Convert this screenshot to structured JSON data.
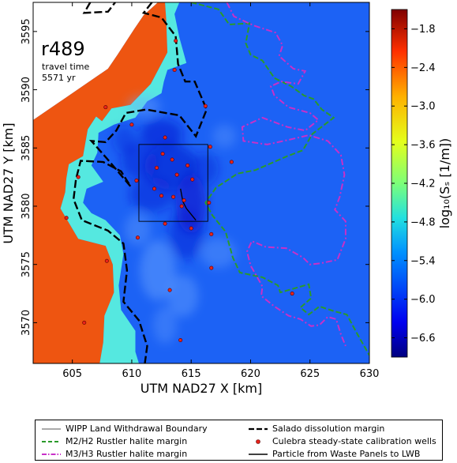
{
  "chart_data": {
    "type": "heatmap",
    "xlabel": "UTM NAD27 X [km]",
    "ylabel": "UTM NAD27 Y [km]",
    "xlim": [
      601.7,
      630.0
    ],
    "ylim": [
      3566.5,
      3597.5
    ],
    "xticks": [
      "605",
      "610",
      "615",
      "620",
      "625",
      "630"
    ],
    "yticks": [
      "3570",
      "3575",
      "3580",
      "3585",
      "3590",
      "3595"
    ],
    "annotation": {
      "title": "r489",
      "line1": "travel time",
      "line2": "5571 yr"
    },
    "colorbar": {
      "label": "log₁₀(Sₛ [1/m])",
      "range": [
        -6.9,
        -1.5
      ],
      "ticks": [
        "−1.8",
        "−2.4",
        "−3.0",
        "−3.6",
        "−4.2",
        "−4.8",
        "−5.4",
        "−6.0",
        "−6.6"
      ],
      "tick_values": [
        -1.8,
        -2.4,
        -3.0,
        -3.6,
        -4.2,
        -4.8,
        -5.4,
        -6.0,
        -6.6
      ]
    },
    "colors": {
      "high": "#ee5511",
      "mid": "#55e8e0",
      "low": "#1c62f5",
      "deep": "#0a1ad0",
      "no_data": "#ffffff"
    },
    "wipp_boundary": {
      "x": [
        610.6,
        616.4
      ],
      "y": [
        3578.7,
        3585.3
      ]
    },
    "wells": [
      {
        "x": 613.7,
        "y": 3594.2
      },
      {
        "x": 613.6,
        "y": 3591.7
      },
      {
        "x": 607.8,
        "y": 3588.5
      },
      {
        "x": 616.2,
        "y": 3588.6
      },
      {
        "x": 610.0,
        "y": 3587.0
      },
      {
        "x": 612.8,
        "y": 3585.9
      },
      {
        "x": 616.6,
        "y": 3585.1
      },
      {
        "x": 618.4,
        "y": 3583.8
      },
      {
        "x": 605.5,
        "y": 3582.5
      },
      {
        "x": 610.4,
        "y": 3582.2
      },
      {
        "x": 612.6,
        "y": 3584.5
      },
      {
        "x": 613.4,
        "y": 3584.0
      },
      {
        "x": 614.7,
        "y": 3583.5
      },
      {
        "x": 612.1,
        "y": 3583.3
      },
      {
        "x": 613.8,
        "y": 3582.7
      },
      {
        "x": 615.1,
        "y": 3582.3
      },
      {
        "x": 611.9,
        "y": 3581.5
      },
      {
        "x": 612.5,
        "y": 3580.9
      },
      {
        "x": 613.5,
        "y": 3580.8
      },
      {
        "x": 614.4,
        "y": 3580.5
      },
      {
        "x": 614.2,
        "y": 3580.0
      },
      {
        "x": 616.5,
        "y": 3580.3
      },
      {
        "x": 604.5,
        "y": 3579.0
      },
      {
        "x": 612.8,
        "y": 3578.5
      },
      {
        "x": 615.0,
        "y": 3578.1
      },
      {
        "x": 610.5,
        "y": 3577.3
      },
      {
        "x": 616.7,
        "y": 3577.6
      },
      {
        "x": 607.9,
        "y": 3575.3
      },
      {
        "x": 616.7,
        "y": 3574.7
      },
      {
        "x": 613.2,
        "y": 3572.8
      },
      {
        "x": 623.5,
        "y": 3572.5
      },
      {
        "x": 606.0,
        "y": 3570.0
      },
      {
        "x": 614.1,
        "y": 3568.5
      }
    ],
    "salado_margin": [
      [
        606.5,
        3597.5
      ],
      [
        606.0,
        3596.6
      ],
      [
        608.0,
        3596.7
      ],
      [
        608.6,
        3597.5
      ]
    ],
    "salado_margin_main": [
      [
        611.7,
        3597.5
      ],
      [
        611.0,
        3596.6
      ],
      [
        612.5,
        3596.2
      ],
      [
        613.7,
        3594.6
      ],
      [
        613.9,
        3592.2
      ],
      [
        614.5,
        3590.7
      ],
      [
        615.3,
        3590.7
      ],
      [
        616.3,
        3588.3
      ],
      [
        615.4,
        3586.0
      ],
      [
        614.0,
        3587.8
      ],
      [
        611.2,
        3588.3
      ],
      [
        609.5,
        3588.0
      ],
      [
        608.7,
        3586.5
      ],
      [
        607.8,
        3585.5
      ],
      [
        606.6,
        3585.6
      ],
      [
        607.9,
        3584.1
      ],
      [
        608.9,
        3582.9
      ],
      [
        609.9,
        3581.7
      ],
      [
        609.1,
        3583.0
      ],
      [
        607.6,
        3583.8
      ],
      [
        605.7,
        3583.9
      ],
      [
        605.3,
        3582.3
      ],
      [
        605.1,
        3580.6
      ],
      [
        605.8,
        3578.8
      ],
      [
        608.0,
        3577.9
      ],
      [
        609.3,
        3576.8
      ],
      [
        609.6,
        3574.5
      ],
      [
        609.3,
        3571.8
      ],
      [
        610.6,
        3570.2
      ],
      [
        611.3,
        3568.0
      ],
      [
        611.1,
        3566.5
      ]
    ],
    "m2h2_margin": [
      [
        615.0,
        3597.5
      ],
      [
        617.3,
        3596.9
      ],
      [
        618.2,
        3595.6
      ],
      [
        619.9,
        3595.7
      ],
      [
        619.6,
        3594.0
      ],
      [
        620.0,
        3593.0
      ],
      [
        621.0,
        3592.5
      ],
      [
        622.0,
        3591.0
      ],
      [
        623.4,
        3590.3
      ],
      [
        624.5,
        3589.5
      ],
      [
        625.3,
        3589.2
      ],
      [
        626.0,
        3588.3
      ],
      [
        627.0,
        3587.6
      ],
      [
        625.2,
        3586.2
      ],
      [
        624.4,
        3584.8
      ],
      [
        623.1,
        3584.3
      ],
      [
        620.4,
        3583.1
      ],
      [
        618.9,
        3582.8
      ],
      [
        617.1,
        3581.6
      ],
      [
        616.2,
        3580.3
      ],
      [
        616.8,
        3579.2
      ],
      [
        617.9,
        3577.8
      ],
      [
        618.5,
        3575.6
      ],
      [
        619.1,
        3574.3
      ],
      [
        621.0,
        3573.9
      ],
      [
        622.3,
        3573.2
      ],
      [
        622.5,
        3572.6
      ],
      [
        624.9,
        3573.3
      ],
      [
        625.1,
        3572.1
      ],
      [
        624.2,
        3571.3
      ],
      [
        624.9,
        3570.7
      ],
      [
        625.8,
        3571.4
      ],
      [
        627.0,
        3571.0
      ],
      [
        628.1,
        3570.7
      ],
      [
        629.0,
        3569.0
      ],
      [
        630.0,
        3567.2
      ]
    ],
    "m3h3_margin": [
      [
        618.0,
        3597.5
      ],
      [
        618.6,
        3596.3
      ],
      [
        620.3,
        3595.5
      ],
      [
        622.1,
        3594.9
      ],
      [
        622.7,
        3593.8
      ],
      [
        622.4,
        3592.9
      ],
      [
        623.6,
        3591.8
      ],
      [
        624.6,
        3591.6
      ],
      [
        624.0,
        3590.5
      ],
      [
        622.6,
        3590.7
      ],
      [
        621.7,
        3590.3
      ],
      [
        622.0,
        3589.5
      ],
      [
        623.2,
        3588.5
      ],
      [
        625.0,
        3588.0
      ],
      [
        625.7,
        3587.4
      ],
      [
        624.6,
        3586.5
      ],
      [
        623.1,
        3586.8
      ],
      [
        621.0,
        3587.6
      ],
      [
        619.3,
        3586.8
      ],
      [
        619.4,
        3585.6
      ],
      [
        621.4,
        3585.3
      ],
      [
        623.2,
        3585.7
      ],
      [
        624.9,
        3586.1
      ],
      [
        626.5,
        3585.6
      ],
      [
        627.6,
        3584.4
      ],
      [
        627.9,
        3582.7
      ],
      [
        627.5,
        3580.8
      ],
      [
        627.1,
        3579.7
      ],
      [
        628.0,
        3578.7
      ],
      [
        628.0,
        3577.2
      ],
      [
        627.3,
        3575.4
      ],
      [
        625.9,
        3575.1
      ],
      [
        625.0,
        3575.0
      ],
      [
        624.4,
        3575.6
      ],
      [
        623.0,
        3576.4
      ],
      [
        621.3,
        3576.5
      ],
      [
        620.1,
        3577.0
      ],
      [
        619.7,
        3576.1
      ],
      [
        620.0,
        3574.9
      ],
      [
        620.4,
        3574.2
      ],
      [
        621.0,
        3573.1
      ],
      [
        620.9,
        3572.3
      ],
      [
        622.0,
        3571.4
      ],
      [
        623.2,
        3570.6
      ],
      [
        624.2,
        3570.3
      ],
      [
        625.1,
        3569.7
      ],
      [
        625.8,
        3569.8
      ],
      [
        626.5,
        3570.5
      ],
      [
        627.2,
        3570.3
      ],
      [
        627.6,
        3569.0
      ],
      [
        628.0,
        3568.0
      ]
    ],
    "particle_path": [
      [
        614.1,
        3581.5
      ],
      [
        614.3,
        3580.4
      ],
      [
        614.6,
        3579.8
      ],
      [
        615.0,
        3579.3
      ],
      [
        615.4,
        3578.8
      ]
    ],
    "no_data_region": [
      [
        601.7,
        3597.5
      ],
      [
        612.2,
        3597.5
      ],
      [
        611.0,
        3596.4
      ],
      [
        610.2,
        3595.2
      ],
      [
        608.8,
        3593.0
      ],
      [
        608.0,
        3591.8
      ],
      [
        604.0,
        3589.0
      ],
      [
        601.7,
        3587.4
      ]
    ],
    "high_region": [
      [
        601.7,
        3587.4
      ],
      [
        604.0,
        3589.0
      ],
      [
        608.0,
        3591.8
      ],
      [
        608.8,
        3593.0
      ],
      [
        610.2,
        3595.2
      ],
      [
        611.0,
        3596.4
      ],
      [
        612.2,
        3597.5
      ],
      [
        612.8,
        3597.5
      ],
      [
        612.9,
        3596.0
      ],
      [
        613.0,
        3593.2
      ],
      [
        611.6,
        3590.5
      ],
      [
        609.9,
        3588.7
      ],
      [
        608.3,
        3588.4
      ],
      [
        607.5,
        3587.3
      ],
      [
        607.0,
        3587.7
      ],
      [
        606.3,
        3586.6
      ],
      [
        605.9,
        3584.3
      ],
      [
        604.7,
        3583.6
      ],
      [
        604.5,
        3582.4
      ],
      [
        604.4,
        3581.2
      ],
      [
        604.0,
        3579.8
      ],
      [
        605.5,
        3577.2
      ],
      [
        607.8,
        3576.6
      ],
      [
        608.4,
        3575.0
      ],
      [
        608.5,
        3572.6
      ],
      [
        607.7,
        3570.6
      ],
      [
        607.6,
        3568.3
      ],
      [
        607.3,
        3566.5
      ],
      [
        601.7,
        3566.5
      ]
    ],
    "mid_region": [
      [
        612.2,
        3597.5
      ],
      [
        614.0,
        3597.5
      ],
      [
        613.6,
        3596.5
      ],
      [
        614.0,
        3594.5
      ],
      [
        614.6,
        3592.3
      ],
      [
        613.0,
        3591.7
      ],
      [
        612.7,
        3590.7
      ],
      [
        612.5,
        3589.7
      ],
      [
        611.3,
        3589.0
      ],
      [
        610.3,
        3587.6
      ],
      [
        608.5,
        3587.0
      ],
      [
        607.2,
        3586.3
      ],
      [
        607.1,
        3584.6
      ],
      [
        606.6,
        3583.5
      ],
      [
        607.6,
        3582.1
      ],
      [
        606.2,
        3581.5
      ],
      [
        605.9,
        3580.3
      ],
      [
        606.6,
        3579.4
      ],
      [
        607.8,
        3578.8
      ],
      [
        609.0,
        3577.5
      ],
      [
        609.3,
        3575.9
      ],
      [
        608.9,
        3573.2
      ],
      [
        609.1,
        3571.1
      ],
      [
        610.3,
        3569.3
      ],
      [
        610.3,
        3567.5
      ],
      [
        610.6,
        3566.5
      ],
      [
        607.3,
        3566.5
      ],
      [
        607.6,
        3568.3
      ],
      [
        607.7,
        3570.6
      ],
      [
        608.5,
        3572.6
      ],
      [
        608.4,
        3575.0
      ],
      [
        607.8,
        3576.6
      ],
      [
        605.5,
        3577.2
      ],
      [
        604.0,
        3579.8
      ],
      [
        604.4,
        3581.2
      ],
      [
        604.5,
        3582.4
      ],
      [
        604.7,
        3583.6
      ],
      [
        605.9,
        3584.3
      ],
      [
        606.3,
        3586.6
      ],
      [
        607.0,
        3587.7
      ],
      [
        607.5,
        3587.3
      ],
      [
        608.3,
        3588.4
      ],
      [
        609.9,
        3588.7
      ],
      [
        611.6,
        3590.5
      ],
      [
        613.0,
        3593.2
      ],
      [
        612.9,
        3596.0
      ],
      [
        612.8,
        3597.5
      ]
    ],
    "deep_blobs": [
      {
        "x": 612.5,
        "y": 3586.2,
        "rx": 1.8,
        "ry": 1.3,
        "o": 0.55
      },
      {
        "x": 613.3,
        "y": 3583.4,
        "rx": 2.2,
        "ry": 2.0,
        "o": 0.6
      },
      {
        "x": 610.6,
        "y": 3583.9,
        "rx": 1.5,
        "ry": 1.6,
        "o": 0.45
      },
      {
        "x": 611.7,
        "y": 3581.0,
        "rx": 1.9,
        "ry": 1.5,
        "o": 0.45
      },
      {
        "x": 615.0,
        "y": 3580.2,
        "rx": 1.3,
        "ry": 2.5,
        "o": 0.7
      },
      {
        "x": 614.6,
        "y": 3577.6,
        "rx": 1.5,
        "ry": 2.2,
        "o": 0.45
      },
      {
        "x": 616.1,
        "y": 3583.2,
        "rx": 1.2,
        "ry": 1.4,
        "o": 0.4
      },
      {
        "x": 609.4,
        "y": 3585.7,
        "rx": 1.0,
        "ry": 1.2,
        "o": 0.35
      }
    ],
    "light_blobs": [
      {
        "x": 612.2,
        "y": 3574.5,
        "rx": 1.5,
        "ry": 2.6,
        "o": 0.45
      },
      {
        "x": 614.3,
        "y": 3572.3,
        "rx": 1.3,
        "ry": 1.8,
        "o": 0.4
      },
      {
        "x": 617.3,
        "y": 3576.0,
        "rx": 1.5,
        "ry": 1.3,
        "o": 0.35
      },
      {
        "x": 611.0,
        "y": 3588.6,
        "rx": 1.4,
        "ry": 0.9,
        "o": 0.4
      },
      {
        "x": 610.5,
        "y": 3578.0,
        "rx": 1.1,
        "ry": 1.4,
        "o": 0.35
      },
      {
        "x": 612.8,
        "y": 3569.8,
        "rx": 1.0,
        "ry": 1.6,
        "o": 0.3
      },
      {
        "x": 617.8,
        "y": 3586.0,
        "rx": 1.0,
        "ry": 1.0,
        "o": 0.3
      }
    ]
  },
  "legend": {
    "items": [
      {
        "label": "WIPP Land Withdrawal Boundary"
      },
      {
        "label": "Salado dissolution margin"
      },
      {
        "label": "M2/H2 Rustler halite margin"
      },
      {
        "label": "Culebra steady-state calibration wells"
      },
      {
        "label": "M3/H3 Rustler halite margin"
      },
      {
        "label": "Particle from Waste Panels to LWB"
      }
    ]
  }
}
